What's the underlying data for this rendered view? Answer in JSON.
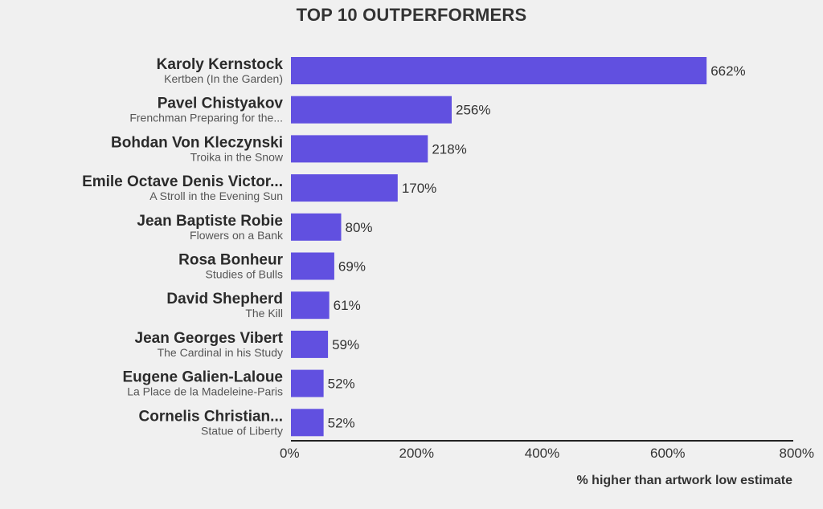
{
  "chart_data": {
    "type": "bar",
    "orientation": "horizontal",
    "title": "TOP 10 OUTPERFORMERS",
    "xlabel": "% higher than artwork low estimate",
    "ylabel": "",
    "xlim": [
      0,
      800
    ],
    "x_ticks": [
      0,
      200,
      400,
      600,
      800
    ],
    "x_tick_labels": [
      "0%",
      "200%",
      "400%",
      "600%",
      "800%"
    ],
    "bar_color": "#6150e0",
    "grid": false,
    "legend": "none",
    "categories": [
      {
        "artist": "Karoly Kernstock",
        "artwork": "Kertben (In the Garden)"
      },
      {
        "artist": "Pavel Chistyakov",
        "artwork": "Frenchman Preparing for the..."
      },
      {
        "artist": "Bohdan Von Kleczynski",
        "artwork": "Troika in the Snow"
      },
      {
        "artist": "Emile Octave Denis Victor...",
        "artwork": "A Stroll in the Evening Sun"
      },
      {
        "artist": "Jean Baptiste Robie",
        "artwork": "Flowers on a Bank"
      },
      {
        "artist": "Rosa Bonheur",
        "artwork": "Studies of Bulls"
      },
      {
        "artist": "David Shepherd",
        "artwork": "The Kill"
      },
      {
        "artist": "Jean Georges Vibert",
        "artwork": "The Cardinal in his Study"
      },
      {
        "artist": "Eugene Galien-Laloue",
        "artwork": "La Place de la Madeleine-Paris"
      },
      {
        "artist": "Cornelis Christian...",
        "artwork": "Statue of Liberty"
      }
    ],
    "values": [
      662,
      256,
      218,
      170,
      80,
      69,
      61,
      59,
      52,
      52
    ],
    "value_labels": [
      "662%",
      "256%",
      "218%",
      "170%",
      "80%",
      "69%",
      "61%",
      "59%",
      "52%",
      "52%"
    ]
  }
}
